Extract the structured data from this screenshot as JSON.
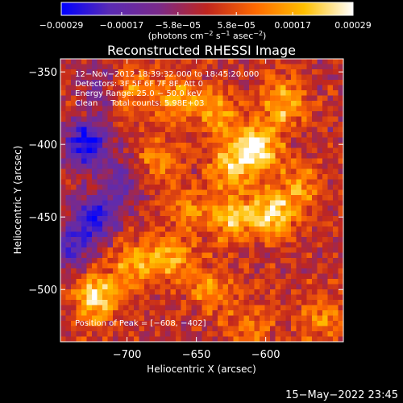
{
  "chart_data": {
    "type": "heatmap",
    "title": "Reconstructed RHESSI Image",
    "xlabel": "Heliocentric X (arcsec)",
    "ylabel": "Heliocentric Y (arcsec)",
    "xlim": [
      -748,
      -544
    ],
    "ylim": [
      -536,
      -341
    ],
    "x_ticks": [
      -700,
      -650,
      -600
    ],
    "x_tick_labels": [
      "−700",
      "−650",
      "−600"
    ],
    "y_ticks": [
      -500,
      -450,
      -400,
      -350
    ],
    "y_tick_labels": [
      "−500",
      "−450",
      "−400",
      "−350"
    ],
    "colorbar": {
      "vmin": -0.00029,
      "vmax": 0.00029,
      "ticks": [
        -0.00029,
        -0.00017,
        -5.8e-05,
        5.8e-05,
        0.00017,
        0.00029
      ],
      "tick_labels": [
        "−0.00029",
        "−0.00017",
        "−5.8e−05",
        "5.8e−05",
        "0.00017",
        "0.00029"
      ],
      "units_prefix": "(photons cm",
      "units_exp1": "−2",
      "units_mid1": " s",
      "units_exp2": "−1",
      "units_mid2": " asec",
      "units_exp3": "−2",
      "units_suffix": ")",
      "colormap": [
        "#0000ff",
        "#5a2bb4",
        "#7a2a8a",
        "#c0261e",
        "#ff6a00",
        "#ffc000",
        "#ffffff"
      ]
    },
    "hotspots": [
      {
        "x": -606,
        "y": -402,
        "value": 0.00029
      },
      {
        "x": -595,
        "y": -448,
        "value": 0.00024
      },
      {
        "x": -624,
        "y": -450,
        "value": 0.0002
      },
      {
        "x": -722,
        "y": -505,
        "value": 0.00026
      },
      {
        "x": -668,
        "y": -478,
        "value": 0.00018
      },
      {
        "x": -695,
        "y": -482,
        "value": 0.00016
      },
      {
        "x": -625,
        "y": -415,
        "value": 0.0002
      },
      {
        "x": -587,
        "y": -372,
        "value": 0.00019
      },
      {
        "x": -635,
        "y": -378,
        "value": 0.00016
      },
      {
        "x": -700,
        "y": -362,
        "value": 0.00015
      },
      {
        "x": -665,
        "y": -368,
        "value": 0.00016
      },
      {
        "x": -640,
        "y": -500,
        "value": 0.00014
      },
      {
        "x": -680,
        "y": -412,
        "value": 0.00013
      },
      {
        "x": -560,
        "y": -520,
        "value": 0.00013
      },
      {
        "x": -575,
        "y": -430,
        "value": 0.00014
      },
      {
        "x": -612,
        "y": -525,
        "value": 0.00011
      },
      {
        "x": -655,
        "y": -445,
        "value": 0.00012
      }
    ],
    "coldspots": [
      {
        "x": -730,
        "y": -400,
        "value": -0.00029
      },
      {
        "x": -722,
        "y": -450,
        "value": -0.00025
      },
      {
        "x": -740,
        "y": -470,
        "value": -0.0002
      },
      {
        "x": -702,
        "y": -425,
        "value": -0.00015
      },
      {
        "x": -718,
        "y": -360,
        "value": -0.00014
      }
    ]
  },
  "info": {
    "line1": "12−Nov−2012 18:39:32.000 to 18:45:20.000",
    "line2": "Detectors: 3F 5F 6F 7F 8F, Att 0",
    "line3": "Energy Range: 25.0 − 50.0 keV",
    "line4": "Clean     Total counts: 5.98E+03",
    "peak": "Position of Peak = [−608, −402]"
  },
  "footer": {
    "date": "15−May−2022 23:45"
  }
}
